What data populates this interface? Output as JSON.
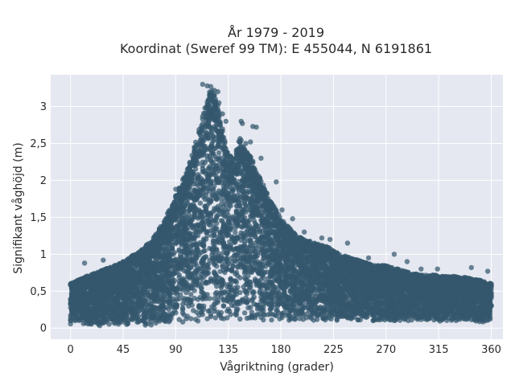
{
  "chart_data": {
    "type": "scatter",
    "title": [
      "År 1979 - 2019",
      "Koordinat (Sweref 99 TM): E 455044, N 6191861"
    ],
    "xlabel": "Vågriktning (grader)",
    "ylabel": "Signifikant våghöjd (m)",
    "xlim": [
      -17,
      370
    ],
    "ylim": [
      -0.15,
      3.43
    ],
    "xticks": [
      0,
      45,
      90,
      135,
      180,
      225,
      270,
      315,
      360
    ],
    "xtick_labels": [
      "0",
      "45",
      "90",
      "135",
      "180",
      "225",
      "270",
      "315",
      "360"
    ],
    "yticks": [
      0,
      0.5,
      1,
      1.5,
      2,
      2.5,
      3
    ],
    "ytick_labels": [
      "0",
      "0,5",
      "1",
      "1,5",
      "2",
      "2,5",
      "3"
    ],
    "grid": true,
    "legend": false,
    "marker_color": "#35586e",
    "plot_background": "#e5e8f0",
    "envelope": {
      "x": [
        0,
        10,
        20,
        30,
        40,
        50,
        60,
        70,
        80,
        90,
        100,
        105,
        110,
        115,
        120,
        125,
        130,
        135,
        140,
        145,
        150,
        155,
        160,
        165,
        170,
        180,
        190,
        200,
        210,
        220,
        230,
        240,
        250,
        260,
        270,
        280,
        290,
        300,
        310,
        320,
        330,
        340,
        350,
        360
      ],
      "y_min": [
        0.05,
        0.04,
        0.03,
        0.03,
        0.03,
        0.03,
        0.03,
        0.04,
        0.05,
        0.06,
        0.07,
        0.08,
        0.09,
        0.1,
        0.1,
        0.1,
        0.1,
        0.1,
        0.1,
        0.1,
        0.1,
        0.1,
        0.1,
        0.1,
        0.1,
        0.1,
        0.1,
        0.1,
        0.1,
        0.1,
        0.1,
        0.1,
        0.1,
        0.1,
        0.1,
        0.1,
        0.1,
        0.1,
        0.09,
        0.09,
        0.09,
        0.09,
        0.08,
        0.06
      ],
      "y_max": [
        0.6,
        0.68,
        0.74,
        0.8,
        0.86,
        0.95,
        1.05,
        1.2,
        1.45,
        1.8,
        2.15,
        2.4,
        2.7,
        3.0,
        3.25,
        3.1,
        2.7,
        2.35,
        2.3,
        2.6,
        2.4,
        2.3,
        2.1,
        1.95,
        1.75,
        1.5,
        1.3,
        1.2,
        1.15,
        1.1,
        1.0,
        0.95,
        0.9,
        0.85,
        0.85,
        0.8,
        0.75,
        0.72,
        0.72,
        0.7,
        0.7,
        0.68,
        0.65,
        0.6
      ]
    },
    "n_points_approx": 9000,
    "outliers": [
      {
        "x": 113,
        "y": 3.3
      },
      {
        "x": 117,
        "y": 3.28
      },
      {
        "x": 120,
        "y": 3.27
      },
      {
        "x": 123,
        "y": 3.22
      },
      {
        "x": 126,
        "y": 3.2
      },
      {
        "x": 127,
        "y": 3.05
      },
      {
        "x": 130,
        "y": 2.9
      },
      {
        "x": 133,
        "y": 2.8
      },
      {
        "x": 146,
        "y": 2.8
      },
      {
        "x": 147,
        "y": 2.77
      },
      {
        "x": 156,
        "y": 2.73
      },
      {
        "x": 159,
        "y": 2.72
      },
      {
        "x": 154,
        "y": 2.52
      },
      {
        "x": 150,
        "y": 2.5
      },
      {
        "x": 163,
        "y": 2.3
      },
      {
        "x": 176,
        "y": 1.98
      },
      {
        "x": 181,
        "y": 1.6
      },
      {
        "x": 190,
        "y": 1.48
      },
      {
        "x": 200,
        "y": 1.3
      },
      {
        "x": 215,
        "y": 1.22
      },
      {
        "x": 222,
        "y": 1.2
      },
      {
        "x": 237,
        "y": 1.15
      },
      {
        "x": 255,
        "y": 0.95
      },
      {
        "x": 277,
        "y": 1.0
      },
      {
        "x": 288,
        "y": 0.9
      },
      {
        "x": 300,
        "y": 0.8
      },
      {
        "x": 314,
        "y": 0.8
      },
      {
        "x": 343,
        "y": 0.82
      },
      {
        "x": 357,
        "y": 0.77
      },
      {
        "x": 28,
        "y": 0.92
      },
      {
        "x": 12,
        "y": 0.88
      },
      {
        "x": 0,
        "y": 0.6
      },
      {
        "x": 360,
        "y": 0.6
      },
      {
        "x": 95,
        "y": 1.9
      },
      {
        "x": 90,
        "y": 1.88
      }
    ]
  }
}
